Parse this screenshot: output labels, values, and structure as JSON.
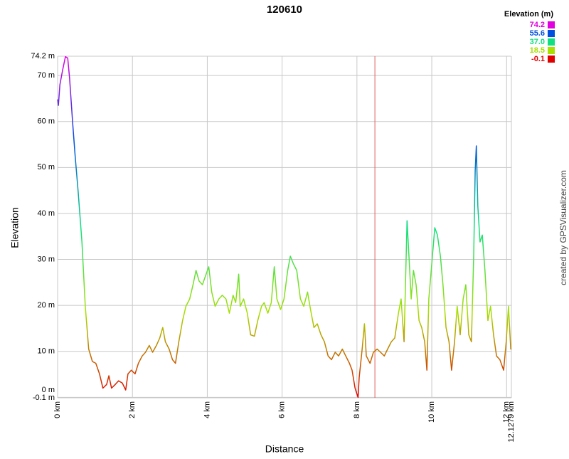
{
  "chart_data": {
    "type": "line",
    "title": "120610",
    "xlabel": "Distance",
    "ylabel": "Elevation",
    "credit": "created by GPSVisualizer.com",
    "legend": {
      "title": "Elevation (m)",
      "items": [
        {
          "value": 74.2,
          "color": "#e000e0"
        },
        {
          "value": 55.6,
          "color": "#0050e0"
        },
        {
          "value": 37,
          "label": "37.0",
          "color": "#10e080"
        },
        {
          "value": 18.5,
          "color": "#a8e000"
        },
        {
          "value": -0.1,
          "color": "#e00000"
        }
      ]
    },
    "marker": {
      "x": 8.48,
      "color": "#e06060"
    },
    "xlim": [
      0,
      12.1279
    ],
    "ylim": [
      -0.1,
      74.2
    ],
    "xticks": [
      {
        "value": 0,
        "label": "0 km"
      },
      {
        "value": 2,
        "label": "2 km"
      },
      {
        "value": 4,
        "label": "4 km"
      },
      {
        "value": 6,
        "label": "6 km"
      },
      {
        "value": 8,
        "label": "8 km"
      },
      {
        "value": 10,
        "label": "10 km"
      },
      {
        "value": 12,
        "label": "12 km"
      },
      {
        "value": 12.1279,
        "label": "12.1279 km"
      }
    ],
    "yticks": [
      {
        "value": -0.1,
        "label": "-0.1 m"
      },
      {
        "value": 0,
        "label": "0 m"
      },
      {
        "value": 10,
        "label": "10 m"
      },
      {
        "value": 20,
        "label": "20 m"
      },
      {
        "value": 30,
        "label": "30 m"
      },
      {
        "value": 40,
        "label": "40 m"
      },
      {
        "value": 50,
        "label": "50 m"
      },
      {
        "value": 60,
        "label": "60 m"
      },
      {
        "value": 70,
        "label": "70 m"
      },
      {
        "value": 74.2,
        "label": "74.2 m"
      }
    ],
    "grid": true,
    "x": [
      0,
      0.02,
      0.06,
      0.13,
      0.21,
      0.27,
      0.32,
      0.4,
      0.47,
      0.55,
      0.65,
      0.74,
      0.83,
      0.93,
      1.02,
      1.12,
      1.21,
      1.31,
      1.37,
      1.44,
      1.54,
      1.63,
      1.73,
      1.82,
      1.88,
      1.97,
      2.07,
      2.16,
      2.26,
      2.35,
      2.45,
      2.54,
      2.64,
      2.73,
      2.81,
      2.88,
      2.98,
      3.07,
      3.15,
      3.24,
      3.34,
      3.43,
      3.53,
      3.62,
      3.7,
      3.78,
      3.87,
      3.97,
      4.04,
      4.12,
      4.21,
      4.31,
      4.4,
      4.5,
      4.59,
      4.69,
      4.76,
      4.84,
      4.88,
      4.97,
      5.07,
      5.16,
      5.26,
      5.35,
      5.45,
      5.52,
      5.62,
      5.71,
      5.79,
      5.86,
      5.96,
      6.05,
      6.15,
      6.22,
      6.3,
      6.39,
      6.49,
      6.58,
      6.68,
      6.76,
      6.85,
      6.94,
      7.04,
      7.13,
      7.23,
      7.32,
      7.42,
      7.51,
      7.61,
      7.7,
      7.8,
      7.87,
      7.95,
      8.03,
      8.06,
      8.14,
      8.2,
      8.25,
      8.35,
      8.44,
      8.54,
      8.63,
      8.73,
      8.82,
      8.92,
      9.01,
      9.11,
      9.18,
      9.26,
      9.34,
      9.39,
      9.45,
      9.51,
      9.58,
      9.66,
      9.73,
      9.81,
      9.87,
      9.92,
      10,
      10.08,
      10.15,
      10.23,
      10.3,
      10.38,
      10.46,
      10.53,
      10.61,
      10.68,
      10.76,
      10.84,
      10.91,
      10.99,
      11.06,
      11.12,
      11.16,
      11.19,
      11.23,
      11.29,
      11.35,
      11.42,
      11.5,
      11.57,
      11.65,
      11.73,
      11.82,
      11.92,
      11.99,
      12.05,
      12.11,
      12.1279
    ],
    "series": [
      {
        "name": "Elevation",
        "values": [
          64.8,
          63.5,
          68,
          71,
          74.1,
          73.8,
          69.5,
          60,
          52.4,
          44.7,
          33.8,
          19.8,
          10.5,
          7.8,
          7.4,
          5.1,
          2,
          2.8,
          4.7,
          2,
          2.8,
          3.6,
          3.1,
          1.6,
          5.1,
          5.9,
          5.1,
          7.4,
          9,
          9.8,
          11.3,
          9.8,
          11.3,
          12.9,
          15.2,
          12.1,
          10.5,
          8.2,
          7.4,
          12.1,
          16.7,
          19.8,
          21.4,
          24.5,
          27.6,
          25.3,
          24.5,
          26.8,
          28.4,
          22.9,
          19.8,
          21.4,
          22.2,
          21.4,
          18.3,
          22.2,
          20.6,
          26.8,
          19.8,
          21.4,
          18.3,
          13.6,
          13.3,
          16.7,
          19.8,
          20.6,
          18.3,
          20.6,
          28.4,
          21.4,
          19.1,
          21.4,
          27.6,
          30.7,
          29.1,
          27.6,
          21.4,
          19.8,
          22.9,
          19.1,
          15.2,
          16,
          13.6,
          12.1,
          9,
          8.2,
          9.8,
          9,
          10.5,
          9,
          7.4,
          5.9,
          2,
          0,
          4.3,
          10.5,
          16,
          9,
          7.4,
          9.8,
          10.5,
          9.8,
          9,
          10.5,
          12.1,
          12.9,
          18.3,
          21.4,
          12.1,
          38.4,
          30.7,
          21.4,
          27.6,
          24.5,
          16.7,
          15.2,
          12.1,
          5.9,
          21.4,
          29.1,
          36.9,
          35.3,
          30.7,
          24.5,
          15.2,
          12.1,
          5.9,
          12.1,
          19.8,
          13.6,
          21.4,
          24.5,
          13.6,
          12.1,
          30.7,
          49.3,
          54.7,
          41.6,
          33.8,
          35.3,
          27.6,
          16.7,
          19.8,
          13.6,
          9,
          8.2,
          5.9,
          12.1,
          19.8,
          10.5,
          10.5
        ]
      }
    ]
  }
}
